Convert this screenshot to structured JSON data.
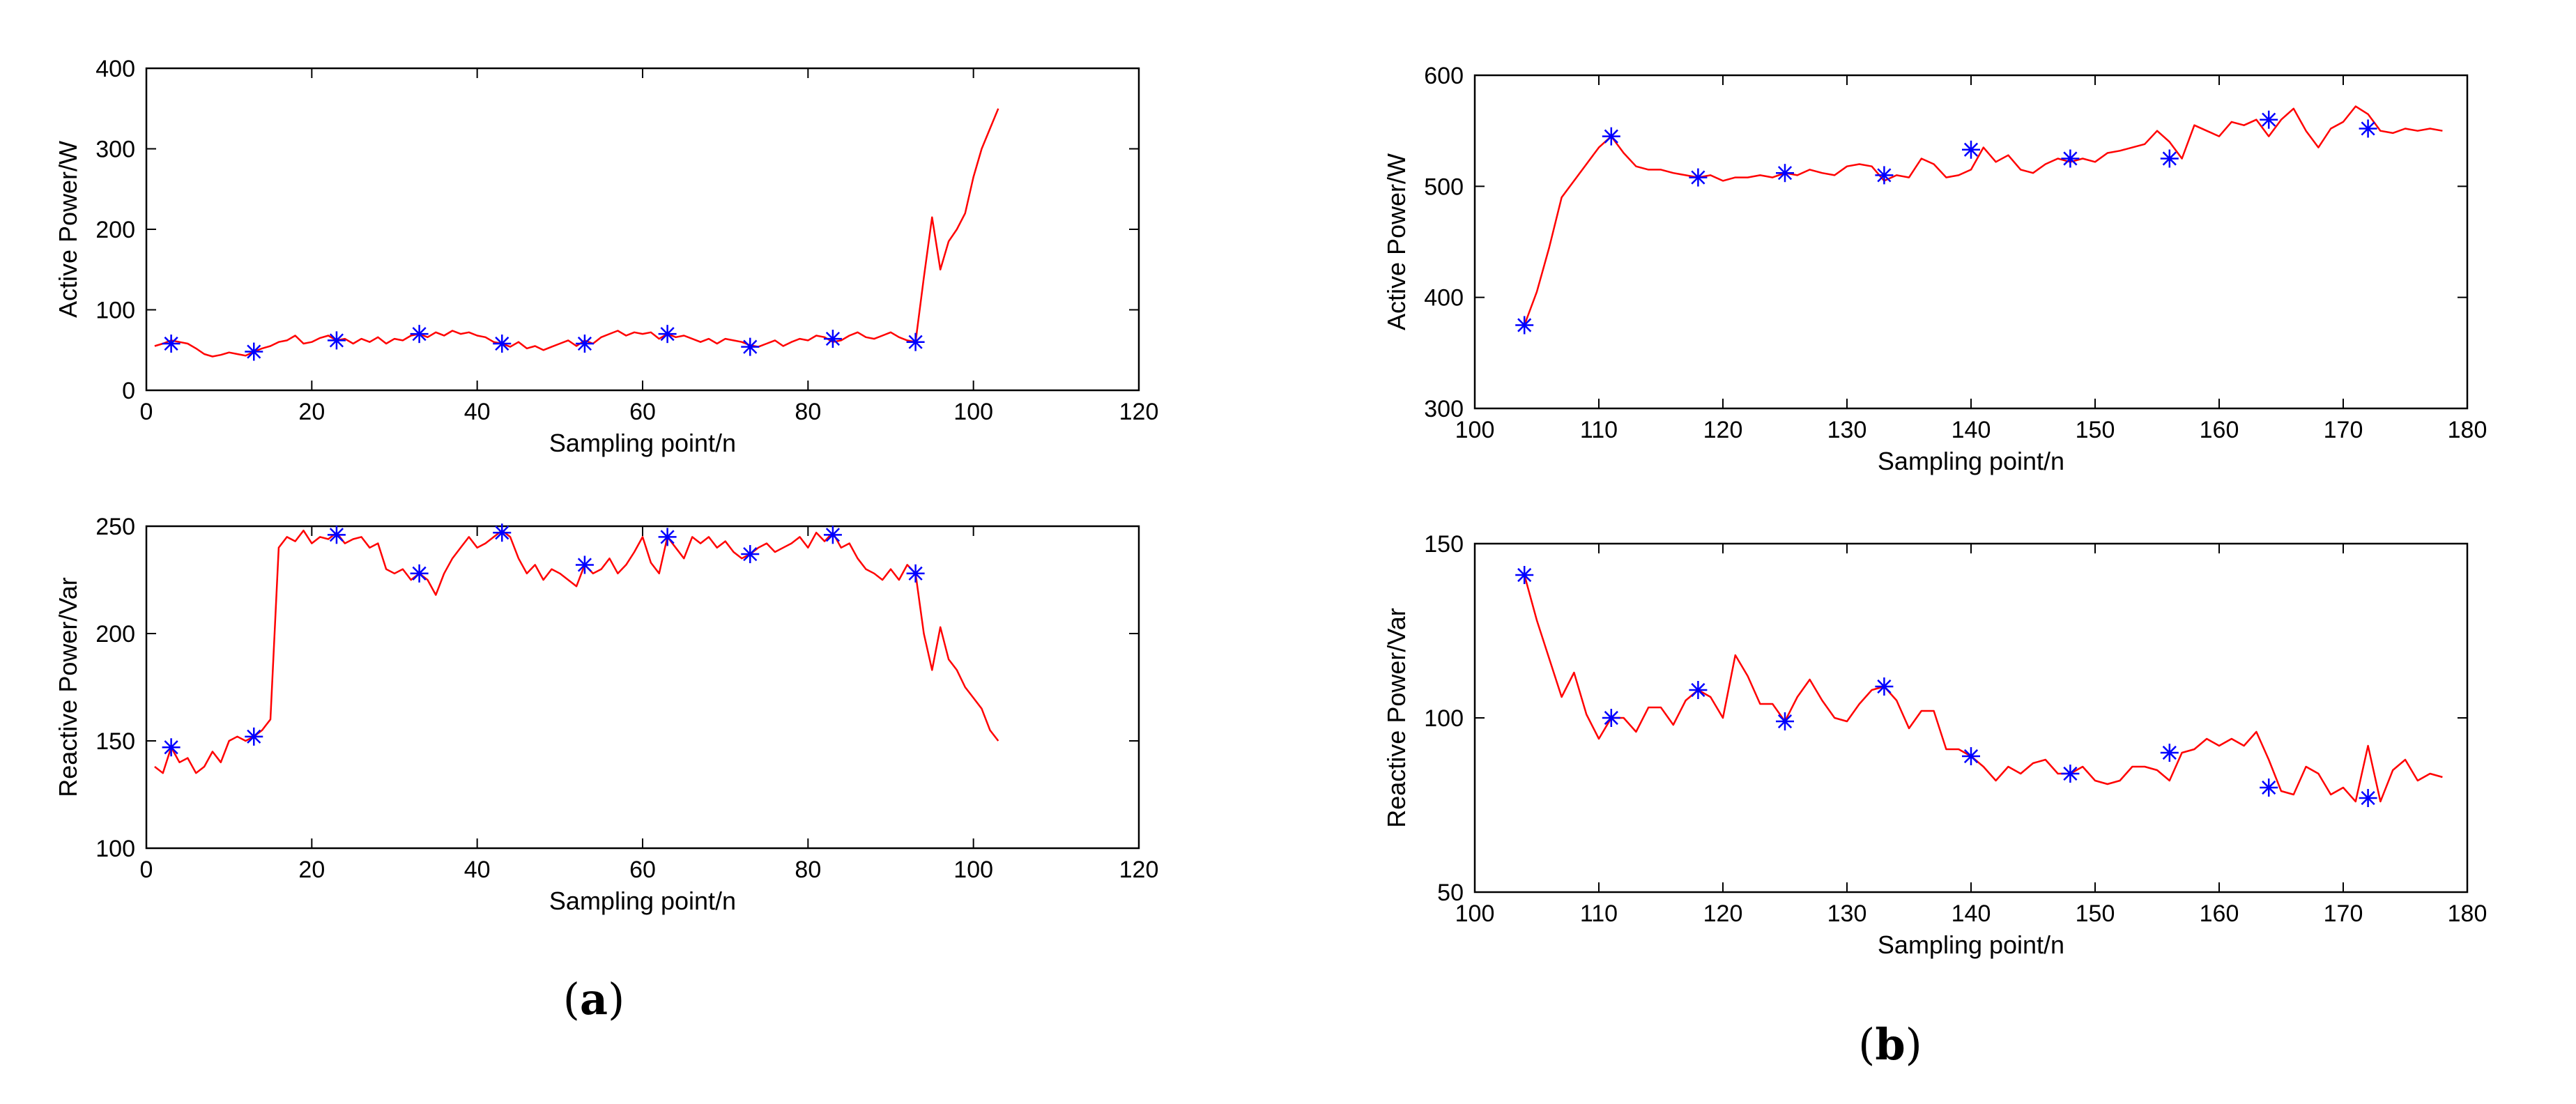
{
  "colors": {
    "line": "#ff0000",
    "marker": "#0000ff",
    "axis": "#000000"
  },
  "panel_labels": [
    {
      "open": "(",
      "letter": "a",
      "close": ")"
    },
    {
      "open": "(",
      "letter": "b",
      "close": ")"
    }
  ],
  "chart_data": [
    {
      "type": "line",
      "xlabel": "Sampling point/n",
      "ylabel": "Active Power/W",
      "xlim": [
        0,
        120
      ],
      "ylim": [
        0,
        400
      ],
      "xticks": [
        0,
        20,
        40,
        60,
        80,
        100,
        120
      ],
      "yticks": [
        0,
        100,
        200,
        300,
        400
      ],
      "grid": false,
      "x": [
        1,
        2,
        3,
        4,
        5,
        6,
        7,
        8,
        9,
        10,
        11,
        12,
        13,
        14,
        15,
        16,
        17,
        18,
        19,
        20,
        21,
        22,
        23,
        24,
        25,
        26,
        27,
        28,
        29,
        30,
        31,
        32,
        33,
        34,
        35,
        36,
        37,
        38,
        39,
        40,
        41,
        42,
        43,
        44,
        45,
        46,
        47,
        48,
        49,
        50,
        51,
        52,
        53,
        54,
        55,
        56,
        57,
        58,
        59,
        60,
        61,
        62,
        63,
        64,
        65,
        66,
        67,
        68,
        69,
        70,
        71,
        72,
        73,
        74,
        75,
        76,
        77,
        78,
        79,
        80,
        81,
        82,
        83,
        84,
        85,
        86,
        87,
        88,
        89,
        90,
        91,
        92,
        93,
        94,
        95,
        96,
        97,
        98,
        99,
        100,
        101,
        102,
        103
      ],
      "y": [
        55,
        58,
        62,
        60,
        58,
        52,
        45,
        42,
        44,
        47,
        45,
        43,
        48,
        52,
        55,
        60,
        62,
        68,
        58,
        60,
        65,
        68,
        62,
        64,
        58,
        64,
        60,
        66,
        58,
        64,
        62,
        68,
        70,
        66,
        72,
        68,
        74,
        70,
        72,
        68,
        66,
        60,
        58,
        54,
        60,
        52,
        55,
        50,
        54,
        58,
        62,
        55,
        62,
        58,
        66,
        70,
        74,
        68,
        72,
        70,
        72,
        64,
        70,
        66,
        68,
        64,
        60,
        64,
        58,
        64,
        62,
        60,
        56,
        54,
        58,
        62,
        55,
        60,
        64,
        62,
        68,
        66,
        60,
        62,
        68,
        72,
        66,
        64,
        68,
        72,
        66,
        62,
        60,
        140,
        215,
        150,
        185,
        200,
        220,
        265,
        300,
        325,
        350
      ],
      "markers": {
        "x": [
          3,
          13,
          23,
          33,
          43,
          53,
          63,
          73,
          83,
          93
        ],
        "y": [
          58,
          48,
          62,
          70,
          58,
          58,
          70,
          54,
          64,
          60
        ]
      }
    },
    {
      "type": "line",
      "xlabel": "Sampling point/n",
      "ylabel": "Reactive Power/Var",
      "xlim": [
        0,
        120
      ],
      "ylim": [
        100,
        250
      ],
      "xticks": [
        0,
        20,
        40,
        60,
        80,
        100,
        120
      ],
      "yticks": [
        100,
        150,
        200,
        250
      ],
      "grid": false,
      "x": [
        1,
        2,
        3,
        4,
        5,
        6,
        7,
        8,
        9,
        10,
        11,
        12,
        13,
        14,
        15,
        16,
        17,
        18,
        19,
        20,
        21,
        22,
        23,
        24,
        25,
        26,
        27,
        28,
        29,
        30,
        31,
        32,
        33,
        34,
        35,
        36,
        37,
        38,
        39,
        40,
        41,
        42,
        43,
        44,
        45,
        46,
        47,
        48,
        49,
        50,
        51,
        52,
        53,
        54,
        55,
        56,
        57,
        58,
        59,
        60,
        61,
        62,
        63,
        64,
        65,
        66,
        67,
        68,
        69,
        70,
        71,
        72,
        73,
        74,
        75,
        76,
        77,
        78,
        79,
        80,
        81,
        82,
        83,
        84,
        85,
        86,
        87,
        88,
        89,
        90,
        91,
        92,
        93,
        94,
        95,
        96,
        97,
        98,
        99,
        100,
        101,
        102,
        103
      ],
      "y": [
        138,
        135,
        147,
        140,
        142,
        135,
        138,
        145,
        140,
        150,
        152,
        150,
        152,
        155,
        160,
        240,
        245,
        243,
        248,
        242,
        245,
        244,
        247,
        242,
        244,
        245,
        240,
        242,
        230,
        228,
        230,
        225,
        228,
        225,
        218,
        228,
        235,
        240,
        245,
        240,
        242,
        245,
        248,
        245,
        235,
        228,
        232,
        225,
        230,
        228,
        225,
        222,
        232,
        228,
        230,
        235,
        228,
        232,
        238,
        245,
        233,
        228,
        245,
        240,
        235,
        245,
        242,
        245,
        240,
        243,
        238,
        235,
        237,
        240,
        242,
        238,
        240,
        242,
        245,
        240,
        247,
        243,
        247,
        240,
        242,
        235,
        230,
        228,
        225,
        230,
        225,
        232,
        228,
        200,
        183,
        203,
        188,
        183,
        175,
        170,
        165,
        155,
        150
      ],
      "markers": {
        "x": [
          3,
          13,
          23,
          33,
          43,
          53,
          63,
          73,
          83,
          93
        ],
        "y": [
          147,
          152,
          246,
          228,
          247,
          232,
          245,
          237,
          246,
          228
        ]
      }
    },
    {
      "type": "line",
      "xlabel": "Sampling point/n",
      "ylabel": "Active Power/W",
      "xlim": [
        100,
        180
      ],
      "ylim": [
        300,
        600
      ],
      "xticks": [
        100,
        110,
        120,
        130,
        140,
        150,
        160,
        170,
        180
      ],
      "yticks": [
        300,
        400,
        500,
        600
      ],
      "grid": false,
      "x": [
        104,
        105,
        106,
        107,
        108,
        109,
        110,
        111,
        112,
        113,
        114,
        115,
        116,
        117,
        118,
        119,
        120,
        121,
        122,
        123,
        124,
        125,
        126,
        127,
        128,
        129,
        130,
        131,
        132,
        133,
        134,
        135,
        136,
        137,
        138,
        139,
        140,
        141,
        142,
        143,
        144,
        145,
        146,
        147,
        148,
        149,
        150,
        151,
        152,
        153,
        154,
        155,
        156,
        157,
        158,
        159,
        160,
        161,
        162,
        163,
        164,
        165,
        166,
        167,
        168,
        169,
        170,
        171,
        172,
        173,
        174,
        175,
        176,
        177,
        178
      ],
      "y": [
        375,
        405,
        445,
        490,
        505,
        520,
        535,
        545,
        530,
        518,
        515,
        515,
        512,
        510,
        508,
        510,
        505,
        508,
        508,
        510,
        508,
        512,
        510,
        515,
        512,
        510,
        518,
        520,
        518,
        505,
        510,
        508,
        525,
        520,
        508,
        510,
        515,
        535,
        522,
        528,
        515,
        512,
        520,
        525,
        522,
        525,
        522,
        530,
        532,
        535,
        538,
        550,
        540,
        525,
        555,
        550,
        545,
        558,
        555,
        560,
        545,
        560,
        570,
        550,
        535,
        552,
        558,
        572,
        565,
        550,
        548,
        552,
        550,
        552,
        550
      ],
      "markers": {
        "x": [
          104,
          111,
          118,
          125,
          133,
          140,
          148,
          156,
          164,
          172
        ],
        "y": [
          375,
          545,
          508,
          512,
          510,
          533,
          525,
          525,
          560,
          552
        ]
      }
    },
    {
      "type": "line",
      "xlabel": "Sampling point/n",
      "ylabel": "Reactive Power/Var",
      "xlim": [
        100,
        180
      ],
      "ylim": [
        50,
        150
      ],
      "xticks": [
        100,
        110,
        120,
        130,
        140,
        150,
        160,
        170,
        180
      ],
      "yticks": [
        50,
        100,
        150
      ],
      "grid": false,
      "x": [
        104,
        105,
        106,
        107,
        108,
        109,
        110,
        111,
        112,
        113,
        114,
        115,
        116,
        117,
        118,
        119,
        120,
        121,
        122,
        123,
        124,
        125,
        126,
        127,
        128,
        129,
        130,
        131,
        132,
        133,
        134,
        135,
        136,
        137,
        138,
        139,
        140,
        141,
        142,
        143,
        144,
        145,
        146,
        147,
        148,
        149,
        150,
        151,
        152,
        153,
        154,
        155,
        156,
        157,
        158,
        159,
        160,
        161,
        162,
        163,
        164,
        165,
        166,
        167,
        168,
        169,
        170,
        171,
        172,
        173,
        174,
        175,
        176,
        177,
        178
      ],
      "y": [
        141,
        128,
        117,
        106,
        113,
        101,
        94,
        100,
        100,
        96,
        103,
        103,
        98,
        105,
        108,
        106,
        100,
        118,
        112,
        104,
        104,
        99,
        106,
        111,
        105,
        100,
        99,
        104,
        108,
        109,
        105,
        97,
        102,
        102,
        91,
        91,
        89,
        86,
        82,
        86,
        84,
        87,
        88,
        84,
        84,
        86,
        82,
        81,
        82,
        86,
        86,
        85,
        82,
        90,
        91,
        94,
        92,
        94,
        92,
        96,
        88,
        79,
        78,
        86,
        84,
        78,
        80,
        76,
        92,
        76,
        85,
        88,
        82,
        84,
        83
      ],
      "markers": {
        "x": [
          104,
          111,
          118,
          125,
          133,
          140,
          148,
          156,
          164,
          172
        ],
        "y": [
          141,
          100,
          108,
          99,
          109,
          89,
          84,
          90,
          80,
          77
        ]
      }
    }
  ]
}
